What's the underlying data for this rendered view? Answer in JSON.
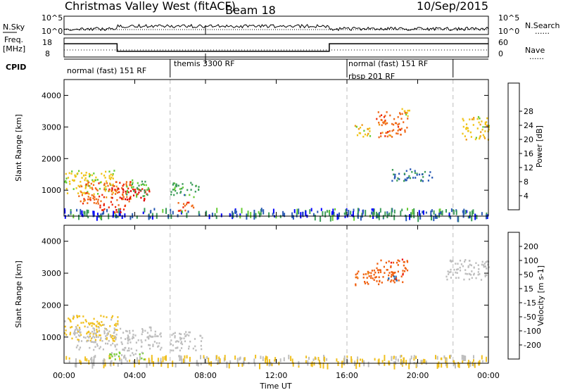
{
  "header": {
    "station": "Christmas Valley West (fitACF)",
    "beam": "Beam 18",
    "date": "10/Sep/2015"
  },
  "side_labels": {
    "nsky": "N.Sky",
    "nsearch": "N.Search",
    "freq_top": "Freq.",
    "freq_unit": "[MHz]",
    "nave": "Nave",
    "cpid": "CPID",
    "dotted": "......"
  },
  "noise_panel": {
    "left_ticks": [
      "10^5",
      "10^0"
    ],
    "right_ticks": [
      "10^5",
      "10^0"
    ]
  },
  "freq_panel": {
    "left_ticks": [
      "18",
      "8"
    ],
    "right_ticks": [
      "60",
      "0"
    ]
  },
  "cpid_modes": [
    {
      "label": "normal (fast) 151 RF",
      "start_h": 0,
      "end_h": 6
    },
    {
      "label": "themis 3300 RF",
      "start_h": 6,
      "end_h": 16
    },
    {
      "label": "rbsp 201 RF",
      "start_h": 16,
      "end_h": 22
    },
    {
      "label": "normal (fast) 151 RF",
      "start_h": 16,
      "end_h": 22
    }
  ],
  "x_axis": {
    "label": "Time UT",
    "ticks": [
      "00:00",
      "04:00",
      "08:00",
      "12:00",
      "16:00",
      "20:00",
      "00:00"
    ],
    "range_hours": [
      0,
      24
    ]
  },
  "y_axis": {
    "label": "Slant Range [km]",
    "ticks": [
      "1000",
      "2000",
      "3000",
      "4000"
    ],
    "range_km": [
      180,
      4500
    ]
  },
  "chart_data": [
    {
      "type": "heatmap",
      "quantity": "Power",
      "colorbar": {
        "label": "Power [dB]",
        "ticks": [
          "4",
          "8",
          "12",
          "16",
          "20",
          "24",
          "28"
        ],
        "range": [
          0,
          30
        ],
        "colors": [
          "#0000ff",
          "#2a5ab5",
          "#3c9c5a",
          "#66cc33",
          "#f0c419",
          "#f09a19",
          "#f06a19",
          "#ee2a0c",
          "#dd0000"
        ]
      },
      "regions": [
        {
          "t0": 0.0,
          "t1": 2.8,
          "r0": 900,
          "r1": 1650,
          "level": 14
        },
        {
          "t0": 0.8,
          "t1": 3.8,
          "r0": 600,
          "r1": 1300,
          "level": 22
        },
        {
          "t0": 2.5,
          "t1": 4.8,
          "r0": 700,
          "r1": 1100,
          "level": 27
        },
        {
          "t0": 2.0,
          "t1": 3.5,
          "r0": 300,
          "r1": 600,
          "level": 25
        },
        {
          "t0": 3.5,
          "t1": 4.8,
          "r0": 800,
          "r1": 1350,
          "level": 10
        },
        {
          "t0": 6.0,
          "t1": 7.6,
          "r0": 800,
          "r1": 1300,
          "level": 9
        },
        {
          "t0": 6.4,
          "t1": 7.4,
          "r0": 350,
          "r1": 650,
          "level": 24
        },
        {
          "t0": 16.3,
          "t1": 17.3,
          "r0": 2700,
          "r1": 3150,
          "level": 15
        },
        {
          "t0": 17.6,
          "t1": 19.4,
          "r0": 2700,
          "r1": 3500,
          "level": 22
        },
        {
          "t0": 19.0,
          "t1": 19.5,
          "r0": 3300,
          "r1": 3650,
          "level": 14
        },
        {
          "t0": 22.5,
          "t1": 24.0,
          "r0": 2600,
          "r1": 3350,
          "level": 15
        },
        {
          "t0": 18.5,
          "t1": 20.8,
          "r0": 1300,
          "r1": 1700,
          "level": 6
        }
      ],
      "ground_band": {
        "r0": 180,
        "r1": 450,
        "level": 6
      }
    },
    {
      "type": "heatmap",
      "quantity": "Velocity",
      "colorbar": {
        "label": "Velocity [m s-1]",
        "ticks": [
          "200",
          "100",
          "50",
          "15",
          "-15",
          "-50",
          "-100",
          "-200"
        ],
        "range": [
          -250,
          250
        ],
        "colors": [
          "#2040c0",
          "#2a6ab0",
          "#3c8c50",
          "#77cc33",
          "#bebebe",
          "#f0c020",
          "#f09020",
          "#f06010",
          "#ee1010"
        ]
      },
      "regions": [
        {
          "t0": 0.0,
          "t1": 3.0,
          "r0": 900,
          "r1": 1700,
          "value": -40
        },
        {
          "t0": 0.5,
          "t1": 5.5,
          "r0": 600,
          "r1": 1350,
          "value": 0
        },
        {
          "t0": 2.5,
          "t1": 4.5,
          "r0": 250,
          "r1": 550,
          "value": 30
        },
        {
          "t0": 6.0,
          "t1": 7.8,
          "r0": 600,
          "r1": 1200,
          "value": 0
        },
        {
          "t0": 16.3,
          "t1": 17.8,
          "r0": 2650,
          "r1": 3150,
          "value": -150
        },
        {
          "t0": 17.6,
          "t1": 19.4,
          "r0": 2700,
          "r1": 3500,
          "value": -180
        },
        {
          "t0": 18.3,
          "t1": 18.8,
          "r0": 2700,
          "r1": 2950,
          "value": 180
        },
        {
          "t0": 21.5,
          "t1": 24.0,
          "r0": 2800,
          "r1": 3450,
          "value": 0
        }
      ],
      "ground_band": {
        "r0": 180,
        "r1": 450,
        "value": -30
      }
    }
  ],
  "frequency_segments": [
    {
      "start_h": 0,
      "end_h": 3,
      "mhz": 15
    },
    {
      "start_h": 3,
      "end_h": 15,
      "mhz": 11
    },
    {
      "start_h": 15,
      "end_h": 24,
      "mhz": 15
    }
  ],
  "dashed_time_markers_h": [
    6,
    16,
    22
  ]
}
